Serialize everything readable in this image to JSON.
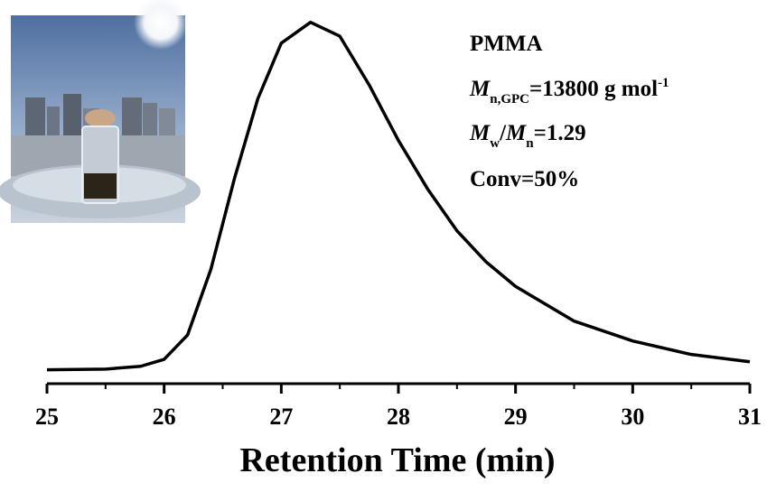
{
  "chart_data": {
    "type": "line",
    "x_label": "Retention Time (min)",
    "annotations": {
      "polymer": "PMMA",
      "mn": {
        "symbol": "M",
        "sub": "n,GPC",
        "text": "=13800  g mol",
        "sup": "-1"
      },
      "dispersity": {
        "symbol1": "M",
        "sub1": "w",
        "slash": "/",
        "symbol2": "M",
        "sub2": "n",
        "text": "=1.29"
      },
      "conversion": "Conv=50%"
    },
    "x": [
      25,
      25.5,
      25.8,
      26.0,
      26.2,
      26.4,
      26.6,
      26.8,
      27.0,
      27.25,
      27.5,
      27.75,
      28.0,
      28.25,
      28.5,
      28.75,
      29.0,
      29.5,
      30.0,
      30.5,
      31.0
    ],
    "series": [
      {
        "color": "#000000",
        "values": [
          0,
          0.002,
          0.01,
          0.03,
          0.1,
          0.29,
          0.55,
          0.78,
          0.94,
          1.0,
          0.96,
          0.82,
          0.66,
          0.52,
          0.4,
          0.31,
          0.24,
          0.14,
          0.083,
          0.044,
          0.023
        ]
      }
    ],
    "xlim": [
      25,
      31
    ],
    "ylim": [
      -0.04,
      1.02
    ],
    "xticks": [
      25,
      26,
      27,
      28,
      29,
      30,
      31
    ],
    "x_minor_ticks": [
      25.5,
      26.5,
      27.5,
      28.5,
      29.5,
      30.5
    ]
  }
}
